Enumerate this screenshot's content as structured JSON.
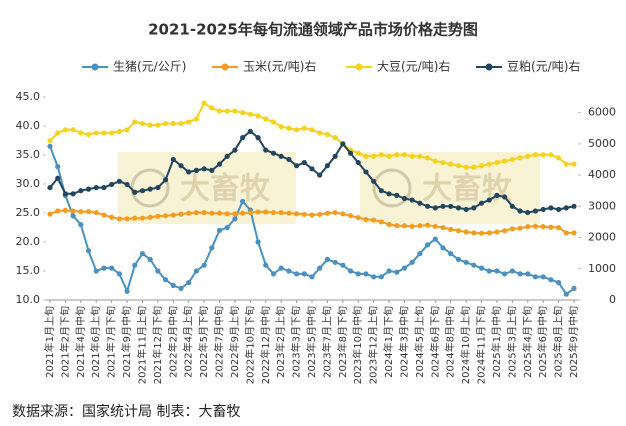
{
  "chart_data": {
    "type": "line",
    "title": "2021-2025年每旬流通领域产品市场价格走势图",
    "source": "数据来源：国家统计局  制表：大畜牧",
    "watermark": "大畜牧",
    "categories": [
      "2021年1月上旬",
      null,
      "2021年2月下旬",
      null,
      "2021年4月中旬",
      null,
      "2021年6月上旬",
      null,
      "2021年7月下旬",
      null,
      "2021年9月中旬",
      null,
      "2021年11月上旬",
      null,
      "2021年12月下旬",
      null,
      "2022年2月中旬",
      null,
      "2022年4月上旬",
      null,
      "2022年5月下旬",
      null,
      "2022年7月中旬",
      null,
      "2022年9月上旬",
      null,
      "2022年10月下旬",
      null,
      "2022年12月中旬",
      null,
      "2023年2月上旬",
      null,
      "2023年3月下旬",
      null,
      "2023年5月中旬",
      null,
      "2023年7月上旬",
      null,
      "2023年8月下旬",
      null,
      "2023年10月中旬",
      null,
      "2023年12月上旬",
      null,
      "2024年1月下旬",
      null,
      "2024年3月中旬",
      null,
      "2024年5月上旬",
      null,
      "2024年6月下旬",
      null,
      "2024年8月中旬",
      null,
      "2024年10月上旬",
      null,
      "2024年11月下旬",
      null,
      "2025年1月中旬",
      null,
      "2025年3月上旬",
      null,
      "2025年4月下旬",
      null,
      "2025年6月中旬",
      null,
      "2025年8月上旬",
      null,
      "2025年9月中旬"
    ],
    "series": [
      {
        "name": "生猪(元/公斤)",
        "color": "#4a90c0",
        "axis": "y",
        "values": [
          36.5,
          33,
          28,
          24.5,
          23,
          18.5,
          15,
          15.5,
          15.5,
          14.5,
          11.5,
          16,
          18,
          17,
          15,
          13.5,
          12.5,
          12,
          13,
          15,
          16,
          19,
          22,
          22.5,
          24,
          27,
          25.5,
          20,
          16,
          14.5,
          15.5,
          15,
          14.5,
          14.5,
          14,
          15.5,
          17,
          16.5,
          16,
          15,
          14.5,
          14.5,
          14,
          14,
          15,
          14.8,
          15.5,
          16.5,
          18,
          19.5,
          20.5,
          19,
          18,
          17,
          16.5,
          16,
          15.5,
          15,
          15,
          14.5,
          15,
          14.5,
          14.5,
          14,
          14,
          13.5,
          13,
          11,
          12
        ]
      },
      {
        "name": "玉米(元/吨)右",
        "color": "#f39c1f",
        "axis": "y2",
        "values": [
          2750,
          2850,
          2870,
          2850,
          2830,
          2830,
          2800,
          2720,
          2650,
          2600,
          2600,
          2620,
          2620,
          2650,
          2680,
          2700,
          2720,
          2750,
          2780,
          2800,
          2800,
          2780,
          2780,
          2760,
          2760,
          2780,
          2800,
          2820,
          2820,
          2800,
          2800,
          2780,
          2760,
          2740,
          2720,
          2740,
          2780,
          2800,
          2760,
          2700,
          2640,
          2580,
          2560,
          2500,
          2420,
          2380,
          2380,
          2360,
          2380,
          2400,
          2360,
          2320,
          2260,
          2220,
          2180,
          2150,
          2140,
          2150,
          2180,
          2220,
          2280,
          2300,
          2350,
          2360,
          2350,
          2330,
          2320,
          2150,
          2150
        ]
      },
      {
        "name": "大豆(元/吨)右",
        "color": "#f5d21e",
        "axis": "y2",
        "values": [
          5100,
          5350,
          5450,
          5450,
          5350,
          5300,
          5350,
          5350,
          5350,
          5400,
          5450,
          5700,
          5650,
          5600,
          5600,
          5650,
          5650,
          5650,
          5700,
          5800,
          6300,
          6150,
          6050,
          6050,
          6050,
          6000,
          5950,
          5900,
          5800,
          5700,
          5550,
          5500,
          5450,
          5500,
          5450,
          5350,
          5300,
          5200,
          5000,
          4800,
          4700,
          4600,
          4600,
          4650,
          4600,
          4650,
          4650,
          4600,
          4600,
          4550,
          4450,
          4400,
          4350,
          4300,
          4250,
          4250,
          4300,
          4350,
          4400,
          4450,
          4500,
          4550,
          4600,
          4650,
          4650,
          4650,
          4550,
          4350,
          4350
        ]
      },
      {
        "name": "豆粕(元/吨)右",
        "color": "#22465e",
        "axis": "y2",
        "values": [
          3600,
          3900,
          3400,
          3400,
          3500,
          3550,
          3600,
          3600,
          3700,
          3800,
          3700,
          3450,
          3500,
          3550,
          3600,
          3850,
          4500,
          4300,
          4100,
          4150,
          4200,
          4150,
          4350,
          4600,
          4800,
          5200,
          5400,
          5200,
          4800,
          4700,
          4600,
          4500,
          4300,
          4400,
          4200,
          4000,
          4300,
          4600,
          5000,
          4700,
          4400,
          4100,
          3800,
          3500,
          3400,
          3350,
          3250,
          3200,
          3100,
          3000,
          2950,
          3000,
          3000,
          2950,
          2900,
          2950,
          3100,
          3200,
          3350,
          3300,
          3000,
          2850,
          2800,
          2850,
          2900,
          2950,
          2900,
          2950,
          3000
        ]
      }
    ],
    "ylim": [
      10,
      45
    ],
    "yticks": [
      {
        "value": 10,
        "label": "10.0"
      },
      {
        "value": 15,
        "label": "15.0"
      },
      {
        "value": 20,
        "label": "20.0"
      },
      {
        "value": 25,
        "label": "25.0"
      },
      {
        "value": 30,
        "label": "30.0"
      },
      {
        "value": 35,
        "label": "35.0"
      },
      {
        "value": 40,
        "label": "40.0"
      },
      {
        "value": 45,
        "label": "45.0"
      }
    ],
    "y2lim": [
      0,
      6500
    ],
    "y2ticks": [
      0,
      1000,
      2000,
      3000,
      4000,
      5000,
      6000
    ],
    "legend": "top"
  }
}
